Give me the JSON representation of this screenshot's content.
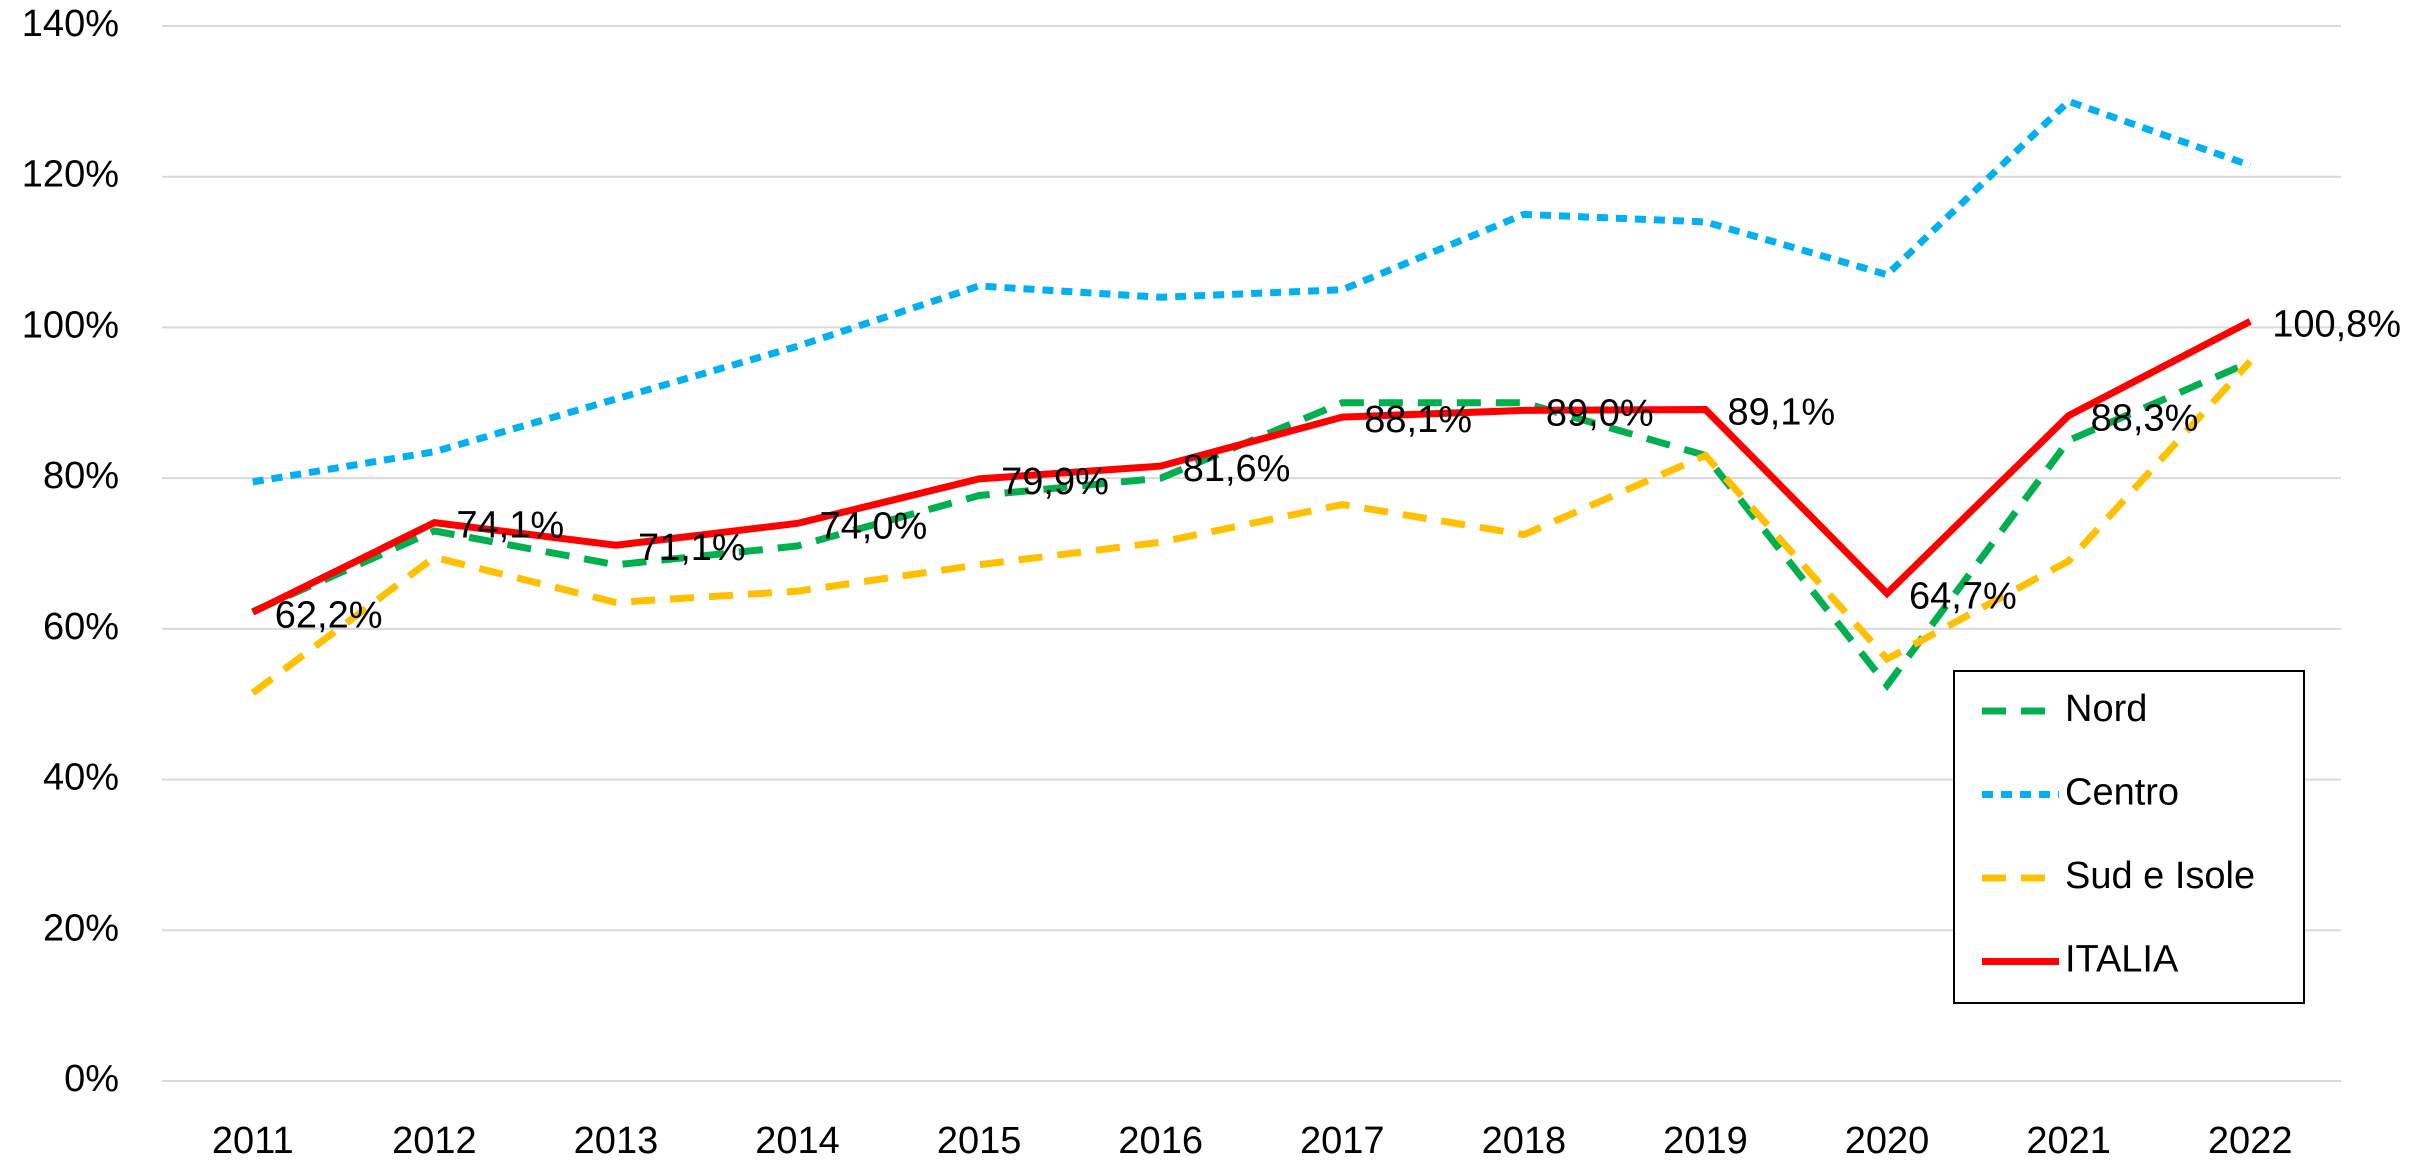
{
  "chart_data": {
    "type": "line",
    "categories": [
      "2011",
      "2012",
      "2013",
      "2014",
      "2015",
      "2016",
      "2017",
      "2018",
      "2019",
      "2020",
      "2021",
      "2022"
    ],
    "series": [
      {
        "name": "Nord",
        "color": "#00b050",
        "style": "dash",
        "values": [
          62.3,
          73,
          68.5,
          71,
          77.7,
          80,
          90,
          90,
          83,
          52.5,
          85,
          95.4
        ]
      },
      {
        "name": "Centro",
        "color": "#00b0f0",
        "style": "dot",
        "values": [
          79.5,
          83.5,
          90.5,
          97.5,
          105.5,
          104,
          105,
          115,
          114,
          107,
          130,
          121.5
        ]
      },
      {
        "name": "Sud e Isole",
        "color": "#ffc000",
        "style": "dash",
        "values": [
          51.5,
          69.5,
          63.5,
          65,
          68.5,
          71.5,
          76.5,
          72.5,
          83,
          56,
          69,
          95.5
        ]
      },
      {
        "name": "ITALIA",
        "color": "#ff0000",
        "style": "solid",
        "values": [
          62.2,
          74.1,
          71.1,
          74.0,
          79.9,
          81.6,
          88.1,
          89.0,
          89.1,
          64.7,
          88.3,
          100.8
        ],
        "value_labels": [
          "62,2%",
          "74,1%",
          "71,1%",
          "74,0%",
          "79,9%",
          "81,6%",
          "88,1%",
          "89,0%",
          "89,1%",
          "64,7%",
          "88,3%",
          "100,8%"
        ]
      }
    ],
    "ylim": [
      0,
      140
    ],
    "yticks": [
      {
        "value": 0,
        "label": "0%"
      },
      {
        "value": 20,
        "label": "20%"
      },
      {
        "value": 40,
        "label": "40%"
      },
      {
        "value": 60,
        "label": "60%"
      },
      {
        "value": 80,
        "label": "80%"
      },
      {
        "value": 100,
        "label": "100%"
      },
      {
        "value": 120,
        "label": "120%"
      },
      {
        "value": 140,
        "label": "140%"
      }
    ],
    "grid": true,
    "legend": "lower right"
  }
}
